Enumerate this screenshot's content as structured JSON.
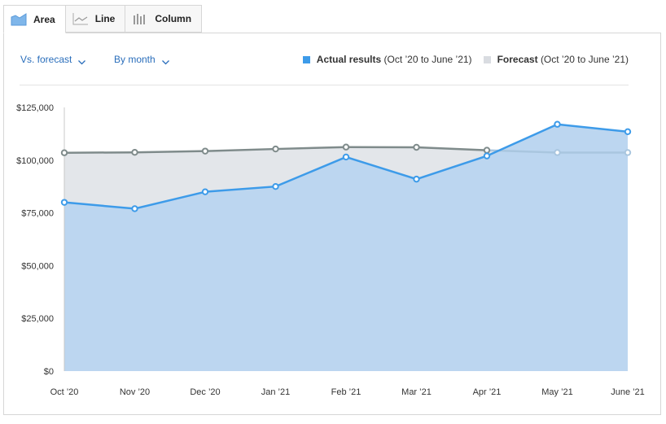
{
  "tabs": [
    {
      "label": "Area",
      "icon": "area-chart-icon",
      "active": true
    },
    {
      "label": "Line",
      "icon": "line-chart-icon",
      "active": false
    },
    {
      "label": "Column",
      "icon": "column-chart-icon",
      "active": false
    }
  ],
  "controls": {
    "comparison": "Vs. forecast",
    "period": "By month"
  },
  "legend": {
    "actual_name": "Actual results",
    "actual_range": "(Oct ’20 to June ’21)",
    "forecast_name": "Forecast",
    "forecast_range": "(Oct ’20 to June ’21)"
  },
  "colors": {
    "actual_line": "#3d9be9",
    "actual_fill": "#bcd6f0",
    "actual_fill_above": "#c3dcf5",
    "forecast_line": "#7f8b8b",
    "forecast_line_light": "#a9c6df",
    "forecast_fill": "#e3e6ea",
    "legend_forecast_swatch": "#d9dce1"
  },
  "chart_data": {
    "type": "area",
    "categories": [
      "Oct ’20",
      "Nov ’20",
      "Dec ’20",
      "Jan ’21",
      "Feb ’21",
      "Mar ’21",
      "Apr ’21",
      "May ’21",
      "June ’21"
    ],
    "series": [
      {
        "name": "Actual results",
        "values": [
          80000,
          77000,
          85000,
          87500,
          101500,
          91000,
          102000,
          117000,
          113500
        ]
      },
      {
        "name": "Forecast",
        "values": [
          103500,
          103700,
          104300,
          105300,
          106200,
          106100,
          104700,
          103600,
          103600
        ]
      }
    ],
    "y_ticks": [
      "$0",
      "$25,000",
      "$50,000",
      "$75,000",
      "$100,000",
      "$125,000"
    ],
    "ylim": [
      0,
      125000
    ],
    "legend_position": "top-right",
    "grid": false
  }
}
